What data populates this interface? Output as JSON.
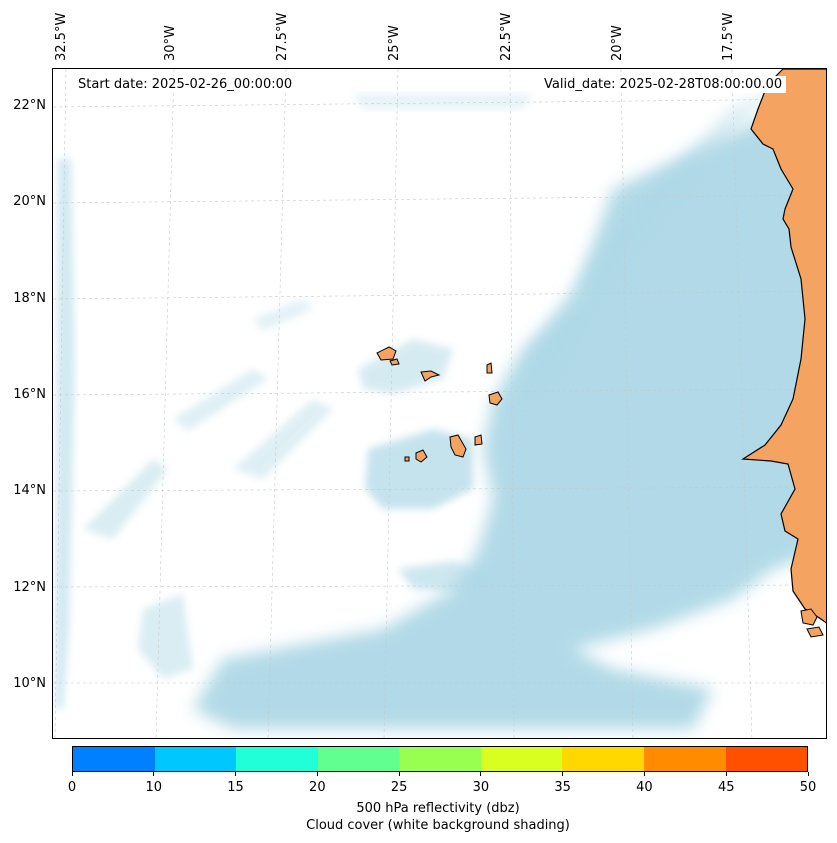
{
  "map": {
    "start_date": "Start date: 2025-02-26_00:00:00",
    "valid_date": "Valid_date: 2025-02-28T08:00:00.00",
    "lon_labels": [
      "32.5°W",
      "30°W",
      "27.5°W",
      "25°W",
      "22.5°W",
      "20°W",
      "17.5°W"
    ],
    "lat_labels": [
      "22°N",
      "20°N",
      "18°N",
      "16°N",
      "14°N",
      "12°N",
      "10°N"
    ],
    "land_color": "#f4a460",
    "cloud_color": "#add8e6",
    "gridlines": true
  },
  "colorbar": {
    "ticks": [
      "0",
      "10",
      "15",
      "20",
      "25",
      "30",
      "35",
      "40",
      "45",
      "50"
    ],
    "colors": [
      "#0080ff",
      "#00c8ff",
      "#20ffd8",
      "#60ff90",
      "#98ff50",
      "#d8ff20",
      "#ffd800",
      "#ff8c00",
      "#ff5000"
    ],
    "label_line1": "500 hPa reflectivity (dbz)",
    "label_line2": "Cloud cover (white background shading)"
  }
}
